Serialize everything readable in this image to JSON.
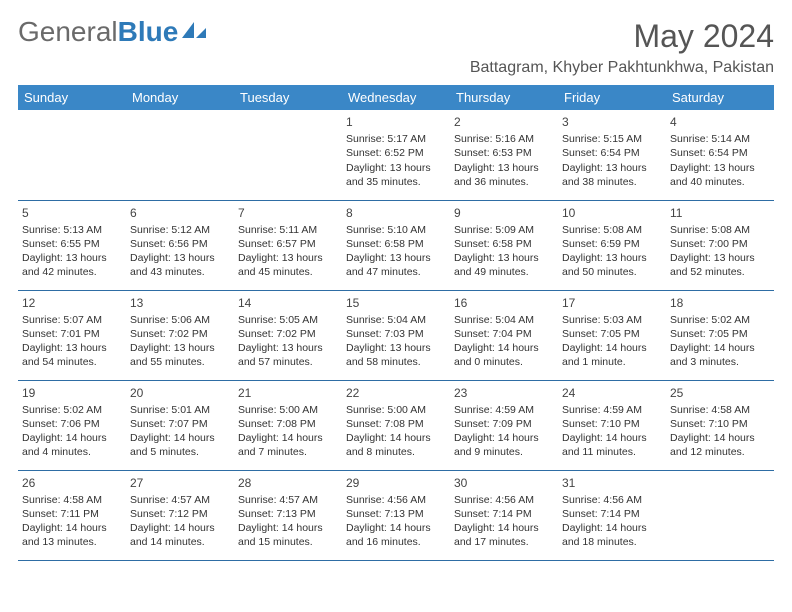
{
  "brand": {
    "part1": "General",
    "part2": "Blue"
  },
  "title": {
    "month": "May 2024",
    "location": "Battagram, Khyber Pakhtunkhwa, Pakistan"
  },
  "colors": {
    "header_bg": "#3a87c7",
    "header_text": "#ffffff",
    "rule": "#2e6da4",
    "brand_gray": "#6a6a6a",
    "brand_blue": "#2e7ab8",
    "body_text": "#333333",
    "page_bg": "#ffffff"
  },
  "dayHeaders": [
    "Sunday",
    "Monday",
    "Tuesday",
    "Wednesday",
    "Thursday",
    "Friday",
    "Saturday"
  ],
  "weeks": [
    [
      null,
      null,
      null,
      {
        "n": "1",
        "sr": "Sunrise: 5:17 AM",
        "ss": "Sunset: 6:52 PM",
        "d1": "Daylight: 13 hours",
        "d2": "and 35 minutes."
      },
      {
        "n": "2",
        "sr": "Sunrise: 5:16 AM",
        "ss": "Sunset: 6:53 PM",
        "d1": "Daylight: 13 hours",
        "d2": "and 36 minutes."
      },
      {
        "n": "3",
        "sr": "Sunrise: 5:15 AM",
        "ss": "Sunset: 6:54 PM",
        "d1": "Daylight: 13 hours",
        "d2": "and 38 minutes."
      },
      {
        "n": "4",
        "sr": "Sunrise: 5:14 AM",
        "ss": "Sunset: 6:54 PM",
        "d1": "Daylight: 13 hours",
        "d2": "and 40 minutes."
      }
    ],
    [
      {
        "n": "5",
        "sr": "Sunrise: 5:13 AM",
        "ss": "Sunset: 6:55 PM",
        "d1": "Daylight: 13 hours",
        "d2": "and 42 minutes."
      },
      {
        "n": "6",
        "sr": "Sunrise: 5:12 AM",
        "ss": "Sunset: 6:56 PM",
        "d1": "Daylight: 13 hours",
        "d2": "and 43 minutes."
      },
      {
        "n": "7",
        "sr": "Sunrise: 5:11 AM",
        "ss": "Sunset: 6:57 PM",
        "d1": "Daylight: 13 hours",
        "d2": "and 45 minutes."
      },
      {
        "n": "8",
        "sr": "Sunrise: 5:10 AM",
        "ss": "Sunset: 6:58 PM",
        "d1": "Daylight: 13 hours",
        "d2": "and 47 minutes."
      },
      {
        "n": "9",
        "sr": "Sunrise: 5:09 AM",
        "ss": "Sunset: 6:58 PM",
        "d1": "Daylight: 13 hours",
        "d2": "and 49 minutes."
      },
      {
        "n": "10",
        "sr": "Sunrise: 5:08 AM",
        "ss": "Sunset: 6:59 PM",
        "d1": "Daylight: 13 hours",
        "d2": "and 50 minutes."
      },
      {
        "n": "11",
        "sr": "Sunrise: 5:08 AM",
        "ss": "Sunset: 7:00 PM",
        "d1": "Daylight: 13 hours",
        "d2": "and 52 minutes."
      }
    ],
    [
      {
        "n": "12",
        "sr": "Sunrise: 5:07 AM",
        "ss": "Sunset: 7:01 PM",
        "d1": "Daylight: 13 hours",
        "d2": "and 54 minutes."
      },
      {
        "n": "13",
        "sr": "Sunrise: 5:06 AM",
        "ss": "Sunset: 7:02 PM",
        "d1": "Daylight: 13 hours",
        "d2": "and 55 minutes."
      },
      {
        "n": "14",
        "sr": "Sunrise: 5:05 AM",
        "ss": "Sunset: 7:02 PM",
        "d1": "Daylight: 13 hours",
        "d2": "and 57 minutes."
      },
      {
        "n": "15",
        "sr": "Sunrise: 5:04 AM",
        "ss": "Sunset: 7:03 PM",
        "d1": "Daylight: 13 hours",
        "d2": "and 58 minutes."
      },
      {
        "n": "16",
        "sr": "Sunrise: 5:04 AM",
        "ss": "Sunset: 7:04 PM",
        "d1": "Daylight: 14 hours",
        "d2": "and 0 minutes."
      },
      {
        "n": "17",
        "sr": "Sunrise: 5:03 AM",
        "ss": "Sunset: 7:05 PM",
        "d1": "Daylight: 14 hours",
        "d2": "and 1 minute."
      },
      {
        "n": "18",
        "sr": "Sunrise: 5:02 AM",
        "ss": "Sunset: 7:05 PM",
        "d1": "Daylight: 14 hours",
        "d2": "and 3 minutes."
      }
    ],
    [
      {
        "n": "19",
        "sr": "Sunrise: 5:02 AM",
        "ss": "Sunset: 7:06 PM",
        "d1": "Daylight: 14 hours",
        "d2": "and 4 minutes."
      },
      {
        "n": "20",
        "sr": "Sunrise: 5:01 AM",
        "ss": "Sunset: 7:07 PM",
        "d1": "Daylight: 14 hours",
        "d2": "and 5 minutes."
      },
      {
        "n": "21",
        "sr": "Sunrise: 5:00 AM",
        "ss": "Sunset: 7:08 PM",
        "d1": "Daylight: 14 hours",
        "d2": "and 7 minutes."
      },
      {
        "n": "22",
        "sr": "Sunrise: 5:00 AM",
        "ss": "Sunset: 7:08 PM",
        "d1": "Daylight: 14 hours",
        "d2": "and 8 minutes."
      },
      {
        "n": "23",
        "sr": "Sunrise: 4:59 AM",
        "ss": "Sunset: 7:09 PM",
        "d1": "Daylight: 14 hours",
        "d2": "and 9 minutes."
      },
      {
        "n": "24",
        "sr": "Sunrise: 4:59 AM",
        "ss": "Sunset: 7:10 PM",
        "d1": "Daylight: 14 hours",
        "d2": "and 11 minutes."
      },
      {
        "n": "25",
        "sr": "Sunrise: 4:58 AM",
        "ss": "Sunset: 7:10 PM",
        "d1": "Daylight: 14 hours",
        "d2": "and 12 minutes."
      }
    ],
    [
      {
        "n": "26",
        "sr": "Sunrise: 4:58 AM",
        "ss": "Sunset: 7:11 PM",
        "d1": "Daylight: 14 hours",
        "d2": "and 13 minutes."
      },
      {
        "n": "27",
        "sr": "Sunrise: 4:57 AM",
        "ss": "Sunset: 7:12 PM",
        "d1": "Daylight: 14 hours",
        "d2": "and 14 minutes."
      },
      {
        "n": "28",
        "sr": "Sunrise: 4:57 AM",
        "ss": "Sunset: 7:13 PM",
        "d1": "Daylight: 14 hours",
        "d2": "and 15 minutes."
      },
      {
        "n": "29",
        "sr": "Sunrise: 4:56 AM",
        "ss": "Sunset: 7:13 PM",
        "d1": "Daylight: 14 hours",
        "d2": "and 16 minutes."
      },
      {
        "n": "30",
        "sr": "Sunrise: 4:56 AM",
        "ss": "Sunset: 7:14 PM",
        "d1": "Daylight: 14 hours",
        "d2": "and 17 minutes."
      },
      {
        "n": "31",
        "sr": "Sunrise: 4:56 AM",
        "ss": "Sunset: 7:14 PM",
        "d1": "Daylight: 14 hours",
        "d2": "and 18 minutes."
      },
      null
    ]
  ]
}
